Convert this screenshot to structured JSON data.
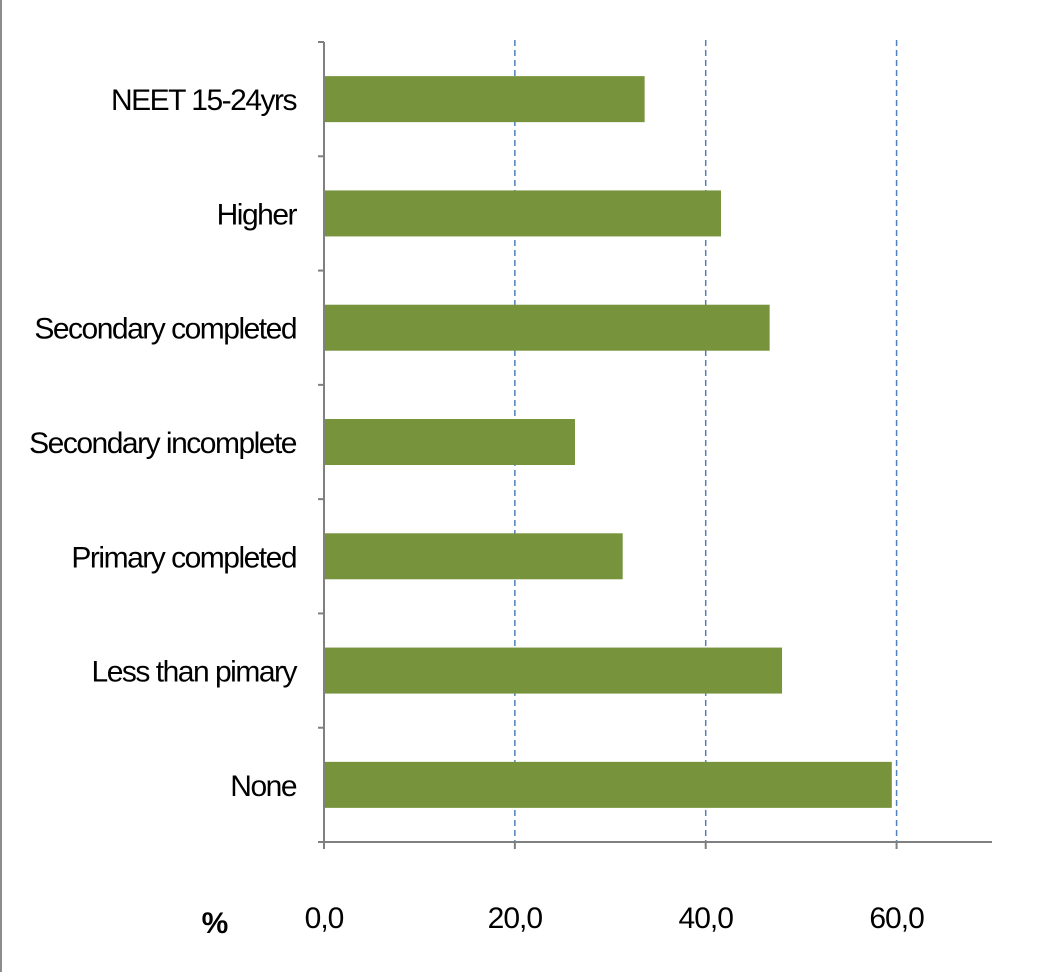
{
  "chart_data": {
    "type": "bar",
    "orientation": "horizontal",
    "categories": [
      "None",
      "Less than pimary",
      "Primary completed",
      "Secondary incomplete",
      "Secondary completed",
      "Higher",
      "NEET 15-24yrs"
    ],
    "values": [
      59.5,
      48.0,
      31.3,
      26.3,
      46.7,
      41.6,
      33.6
    ],
    "xlabel": "%",
    "ylabel": "",
    "xlim": [
      0,
      70
    ],
    "xticks": [
      0,
      20,
      40,
      60
    ],
    "xtick_labels": [
      "0,0",
      "20,0",
      "40,0",
      "60,0"
    ],
    "grid": "vertical dashed",
    "legend": "none",
    "colors": {
      "bar": "#77933c",
      "grid": "#4f81bd",
      "axis": "#808080"
    }
  }
}
